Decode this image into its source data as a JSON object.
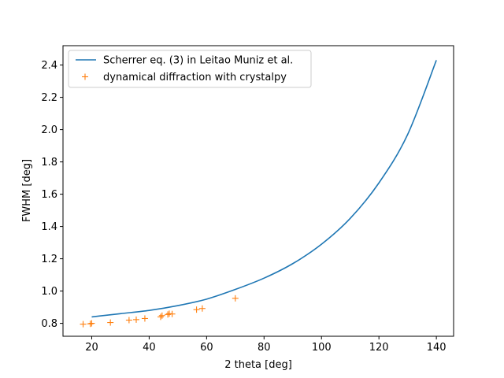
{
  "chart_data": {
    "type": "line",
    "xlabel": "2 theta [deg]",
    "ylabel": "FWHM [deg]",
    "xlim": [
      10,
      146
    ],
    "ylim": [
      0.72,
      2.52
    ],
    "xticks": [
      20,
      40,
      60,
      80,
      100,
      120,
      140
    ],
    "yticks": [
      0.8,
      1.0,
      1.2,
      1.4,
      1.6,
      1.8,
      2.0,
      2.2,
      2.4
    ],
    "xtick_labels": [
      "20",
      "40",
      "60",
      "80",
      "100",
      "120",
      "140"
    ],
    "ytick_labels": [
      "0.8",
      "1.0",
      "1.2",
      "1.4",
      "1.6",
      "1.8",
      "2.0",
      "2.2",
      "2.4"
    ],
    "grid": false,
    "legend_position": "top-left",
    "series": [
      {
        "name": "Scherrer eq. (3) in Leitao Muniz et al.",
        "style": "line",
        "color": "#1f77b4",
        "x": [
          20,
          30,
          40,
          50,
          60,
          70,
          80,
          90,
          100,
          110,
          120,
          130,
          140
        ],
        "y": [
          0.84,
          0.86,
          0.88,
          0.91,
          0.95,
          1.01,
          1.08,
          1.17,
          1.29,
          1.45,
          1.67,
          1.97,
          2.43
        ]
      },
      {
        "name": "dynamical diffraction with crystalpy",
        "style": "marker-plus",
        "color": "#ff7f0e",
        "x": [
          17,
          19.5,
          20,
          26.5,
          33,
          35.5,
          38.5,
          44,
          44.5,
          46.5,
          47,
          48,
          56.5,
          58.5,
          70
        ],
        "y": [
          0.795,
          0.797,
          0.8,
          0.805,
          0.82,
          0.823,
          0.83,
          0.84,
          0.848,
          0.855,
          0.86,
          0.858,
          0.885,
          0.892,
          0.955
        ]
      }
    ]
  }
}
